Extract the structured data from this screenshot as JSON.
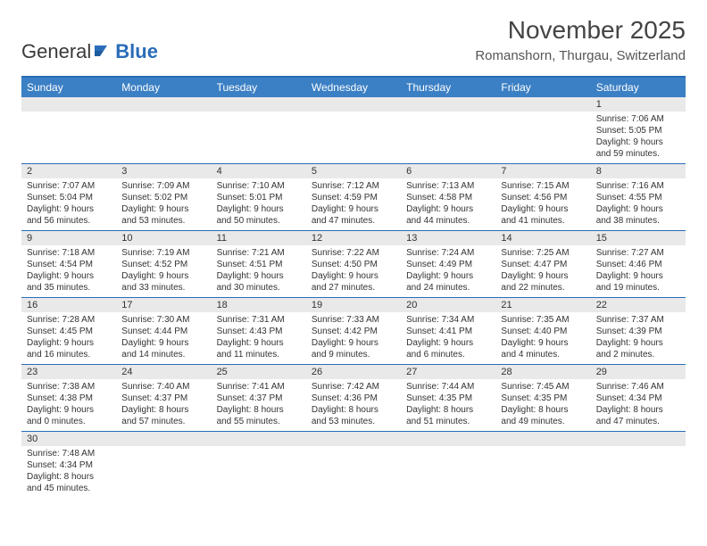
{
  "logo": {
    "text1": "General",
    "text2": "Blue"
  },
  "title": "November 2025",
  "location": "Romanshorn, Thurgau, Switzerland",
  "weekdays": [
    "Sunday",
    "Monday",
    "Tuesday",
    "Wednesday",
    "Thursday",
    "Friday",
    "Saturday"
  ],
  "colors": {
    "header_bar": "#3b7fc4",
    "rule": "#2a6db8",
    "daynum_bg": "#e9e9e9",
    "text": "#333333"
  },
  "weeks": [
    {
      "nums": [
        "",
        "",
        "",
        "",
        "",
        "",
        "1"
      ],
      "cells": [
        null,
        null,
        null,
        null,
        null,
        null,
        {
          "sunrise": "7:06 AM",
          "sunset": "5:05 PM",
          "dl1": "Daylight: 9 hours",
          "dl2": "and 59 minutes."
        }
      ]
    },
    {
      "nums": [
        "2",
        "3",
        "4",
        "5",
        "6",
        "7",
        "8"
      ],
      "cells": [
        {
          "sunrise": "7:07 AM",
          "sunset": "5:04 PM",
          "dl1": "Daylight: 9 hours",
          "dl2": "and 56 minutes."
        },
        {
          "sunrise": "7:09 AM",
          "sunset": "5:02 PM",
          "dl1": "Daylight: 9 hours",
          "dl2": "and 53 minutes."
        },
        {
          "sunrise": "7:10 AM",
          "sunset": "5:01 PM",
          "dl1": "Daylight: 9 hours",
          "dl2": "and 50 minutes."
        },
        {
          "sunrise": "7:12 AM",
          "sunset": "4:59 PM",
          "dl1": "Daylight: 9 hours",
          "dl2": "and 47 minutes."
        },
        {
          "sunrise": "7:13 AM",
          "sunset": "4:58 PM",
          "dl1": "Daylight: 9 hours",
          "dl2": "and 44 minutes."
        },
        {
          "sunrise": "7:15 AM",
          "sunset": "4:56 PM",
          "dl1": "Daylight: 9 hours",
          "dl2": "and 41 minutes."
        },
        {
          "sunrise": "7:16 AM",
          "sunset": "4:55 PM",
          "dl1": "Daylight: 9 hours",
          "dl2": "and 38 minutes."
        }
      ]
    },
    {
      "nums": [
        "9",
        "10",
        "11",
        "12",
        "13",
        "14",
        "15"
      ],
      "cells": [
        {
          "sunrise": "7:18 AM",
          "sunset": "4:54 PM",
          "dl1": "Daylight: 9 hours",
          "dl2": "and 35 minutes."
        },
        {
          "sunrise": "7:19 AM",
          "sunset": "4:52 PM",
          "dl1": "Daylight: 9 hours",
          "dl2": "and 33 minutes."
        },
        {
          "sunrise": "7:21 AM",
          "sunset": "4:51 PM",
          "dl1": "Daylight: 9 hours",
          "dl2": "and 30 minutes."
        },
        {
          "sunrise": "7:22 AM",
          "sunset": "4:50 PM",
          "dl1": "Daylight: 9 hours",
          "dl2": "and 27 minutes."
        },
        {
          "sunrise": "7:24 AM",
          "sunset": "4:49 PM",
          "dl1": "Daylight: 9 hours",
          "dl2": "and 24 minutes."
        },
        {
          "sunrise": "7:25 AM",
          "sunset": "4:47 PM",
          "dl1": "Daylight: 9 hours",
          "dl2": "and 22 minutes."
        },
        {
          "sunrise": "7:27 AM",
          "sunset": "4:46 PM",
          "dl1": "Daylight: 9 hours",
          "dl2": "and 19 minutes."
        }
      ]
    },
    {
      "nums": [
        "16",
        "17",
        "18",
        "19",
        "20",
        "21",
        "22"
      ],
      "cells": [
        {
          "sunrise": "7:28 AM",
          "sunset": "4:45 PM",
          "dl1": "Daylight: 9 hours",
          "dl2": "and 16 minutes."
        },
        {
          "sunrise": "7:30 AM",
          "sunset": "4:44 PM",
          "dl1": "Daylight: 9 hours",
          "dl2": "and 14 minutes."
        },
        {
          "sunrise": "7:31 AM",
          "sunset": "4:43 PM",
          "dl1": "Daylight: 9 hours",
          "dl2": "and 11 minutes."
        },
        {
          "sunrise": "7:33 AM",
          "sunset": "4:42 PM",
          "dl1": "Daylight: 9 hours",
          "dl2": "and 9 minutes."
        },
        {
          "sunrise": "7:34 AM",
          "sunset": "4:41 PM",
          "dl1": "Daylight: 9 hours",
          "dl2": "and 6 minutes."
        },
        {
          "sunrise": "7:35 AM",
          "sunset": "4:40 PM",
          "dl1": "Daylight: 9 hours",
          "dl2": "and 4 minutes."
        },
        {
          "sunrise": "7:37 AM",
          "sunset": "4:39 PM",
          "dl1": "Daylight: 9 hours",
          "dl2": "and 2 minutes."
        }
      ]
    },
    {
      "nums": [
        "23",
        "24",
        "25",
        "26",
        "27",
        "28",
        "29"
      ],
      "cells": [
        {
          "sunrise": "7:38 AM",
          "sunset": "4:38 PM",
          "dl1": "Daylight: 9 hours",
          "dl2": "and 0 minutes."
        },
        {
          "sunrise": "7:40 AM",
          "sunset": "4:37 PM",
          "dl1": "Daylight: 8 hours",
          "dl2": "and 57 minutes."
        },
        {
          "sunrise": "7:41 AM",
          "sunset": "4:37 PM",
          "dl1": "Daylight: 8 hours",
          "dl2": "and 55 minutes."
        },
        {
          "sunrise": "7:42 AM",
          "sunset": "4:36 PM",
          "dl1": "Daylight: 8 hours",
          "dl2": "and 53 minutes."
        },
        {
          "sunrise": "7:44 AM",
          "sunset": "4:35 PM",
          "dl1": "Daylight: 8 hours",
          "dl2": "and 51 minutes."
        },
        {
          "sunrise": "7:45 AM",
          "sunset": "4:35 PM",
          "dl1": "Daylight: 8 hours",
          "dl2": "and 49 minutes."
        },
        {
          "sunrise": "7:46 AM",
          "sunset": "4:34 PM",
          "dl1": "Daylight: 8 hours",
          "dl2": "and 47 minutes."
        }
      ]
    },
    {
      "nums": [
        "30",
        "",
        "",
        "",
        "",
        "",
        ""
      ],
      "cells": [
        {
          "sunrise": "7:48 AM",
          "sunset": "4:34 PM",
          "dl1": "Daylight: 8 hours",
          "dl2": "and 45 minutes."
        },
        null,
        null,
        null,
        null,
        null,
        null
      ]
    }
  ],
  "labels": {
    "sunrise": "Sunrise:",
    "sunset": "Sunset:"
  }
}
